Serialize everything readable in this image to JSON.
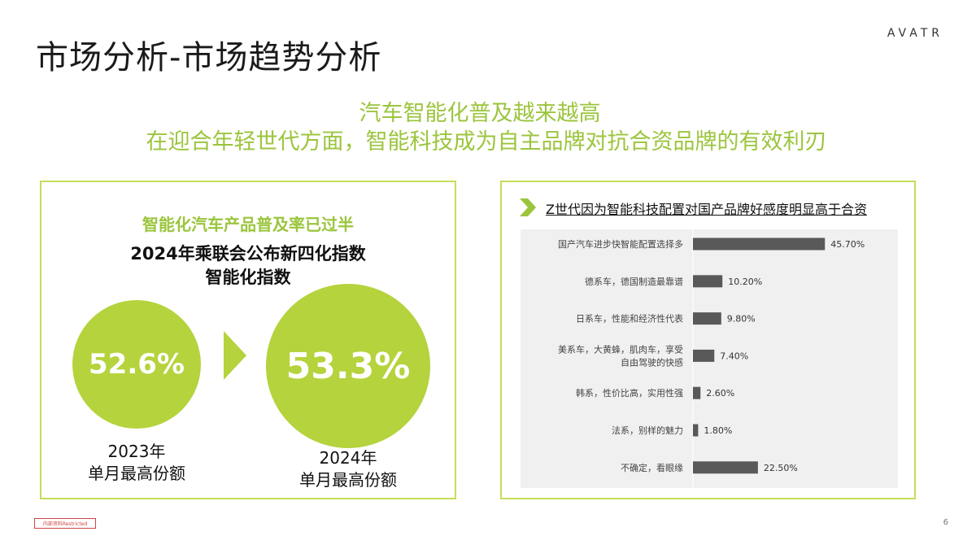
{
  "slide": {
    "title": "市场分析-市场趋势分析",
    "logo": "AVATR",
    "headline1": "汽车智能化普及越来越高",
    "headline2": "在迎合年轻世代方面，智能科技成为自主品牌对抗合资品牌的有效利刃",
    "page_number": "6",
    "confidential": "内部资料Restricted"
  },
  "left_panel": {
    "subtitle": "智能化汽车产品普及率已过半",
    "title_line1": "2024年乘联会公布新四化指数",
    "title_line2": "智能化指数",
    "circle_2023": "52.6%",
    "circle_2024": "53.3%",
    "caption_2023": [
      "2023年",
      "单月最高份额"
    ],
    "caption_2024": [
      "2024年",
      "单月最高份额"
    ]
  },
  "right_panel": {
    "title": "Z世代因为智能科技配置对国产品牌好感度明显高于合资"
  },
  "colors": {
    "accent_green": "#9bc53d",
    "circle_green": "#b5d33d",
    "bar_color": "#595959",
    "panel_border": "#c3df57"
  },
  "chart_data": {
    "type": "bar",
    "orientation": "horizontal",
    "title": "Z世代因为智能科技配置对国产品牌好感度明显高于合资",
    "categories": [
      [
        "国产汽车进步快智能配置选择多"
      ],
      [
        "德系车，德国制造最靠谱"
      ],
      [
        "日系车，性能和经济性代表"
      ],
      [
        "美系车，大黄蜂，肌肉车，享受",
        "自由驾驶的快感"
      ],
      [
        "韩系，性价比高，实用性强"
      ],
      [
        "法系，别样的魅力"
      ],
      [
        "不确定，看眼缘"
      ]
    ],
    "values": [
      45.7,
      10.2,
      9.8,
      7.4,
      2.6,
      1.8,
      22.5
    ],
    "value_labels": [
      "45.70%",
      "10.20%",
      "9.80%",
      "7.40%",
      "2.60%",
      "1.80%",
      "22.50%"
    ],
    "xlim": [
      0,
      60
    ],
    "grid": false
  }
}
